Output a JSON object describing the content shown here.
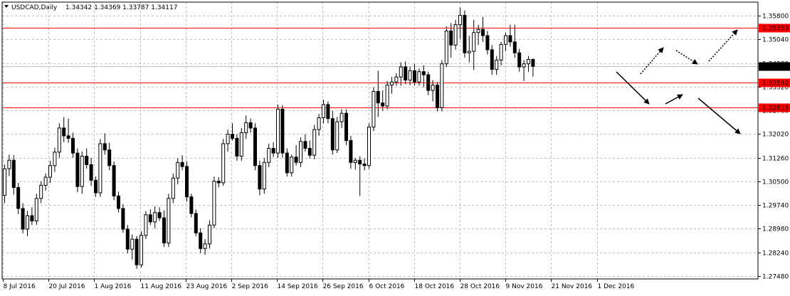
{
  "header": {
    "symbol_label": "USDCAD,Daily",
    "ohlc_label": "1.34342 1.34369 1.33787 1.34117"
  },
  "chart_data": {
    "type": "candlestick",
    "y_ticks": [
      "1.35800",
      "1.35040",
      "1.34280",
      "1.33520",
      "1.32760",
      "1.32020",
      "1.31260",
      "1.30500",
      "1.29740",
      "1.28980",
      "1.28240",
      "1.27480"
    ],
    "x_ticks": [
      "8 Jul 2016",
      "20 Jul 2016",
      "1 Aug 2016",
      "11 Aug 2016",
      "23 Aug 2016",
      "2 Sep 2016",
      "14 Sep 2016",
      "26 Sep 2016",
      "6 Oct 2016",
      "18 Oct 2016",
      "28 Oct 2016",
      "9 Nov 2016",
      "21 Nov 2016",
      "1 Dec 2016"
    ],
    "ylim": [
      1.2733,
      1.3617
    ],
    "grid": true,
    "current_price": "1.34117",
    "horizontal_levels": [
      {
        "value": 1.35353,
        "label": "1.35353",
        "color": "#ff0000"
      },
      {
        "value": 1.33592,
        "label": "1.33592",
        "color": "#ff0000"
      },
      {
        "value": 1.32815,
        "label": "1.32815",
        "color": "#ff0000"
      }
    ],
    "candles": [
      [
        1.3,
        1.3098,
        1.2975,
        1.3085
      ],
      [
        1.3085,
        1.313,
        1.3062,
        1.3112
      ],
      [
        1.3112,
        1.3128,
        1.3002,
        1.3025
      ],
      [
        1.3025,
        1.304,
        1.294,
        1.2958
      ],
      [
        1.2958,
        1.2975,
        1.2878,
        1.2892
      ],
      [
        1.2892,
        1.295,
        1.287,
        1.2935
      ],
      [
        1.2935,
        1.2962,
        1.2905,
        1.2918
      ],
      [
        1.2918,
        1.3005,
        1.2905,
        1.299
      ],
      [
        1.299,
        1.3045,
        1.2975,
        1.3032
      ],
      [
        1.3032,
        1.307,
        1.3015,
        1.3058
      ],
      [
        1.3058,
        1.311,
        1.304,
        1.3095
      ],
      [
        1.3095,
        1.3152,
        1.3075,
        1.3138
      ],
      [
        1.3138,
        1.323,
        1.312,
        1.3215
      ],
      [
        1.3215,
        1.325,
        1.317,
        1.319
      ],
      [
        1.319,
        1.3245,
        1.3168,
        1.3182
      ],
      [
        1.3182,
        1.32,
        1.312,
        1.3135
      ],
      [
        1.3135,
        1.315,
        1.301,
        1.3028
      ],
      [
        1.3028,
        1.314,
        1.3005,
        1.3125
      ],
      [
        1.3125,
        1.315,
        1.3085,
        1.3098
      ],
      [
        1.3098,
        1.312,
        1.303,
        1.3048
      ],
      [
        1.3048,
        1.306,
        1.2995,
        1.3008
      ],
      [
        1.3008,
        1.318,
        1.2995,
        1.3165
      ],
      [
        1.3165,
        1.3198,
        1.313,
        1.3145
      ],
      [
        1.3145,
        1.3168,
        1.308,
        1.3095
      ],
      [
        1.3095,
        1.3108,
        1.2985,
        1.2998
      ],
      [
        1.2998,
        1.3012,
        1.2945,
        1.2958
      ],
      [
        1.2958,
        1.2972,
        1.288,
        1.2892
      ],
      [
        1.2892,
        1.2905,
        1.2815,
        1.2828
      ],
      [
        1.2828,
        1.2875,
        1.2795,
        1.286
      ],
      [
        1.286,
        1.287,
        1.2765,
        1.2778
      ],
      [
        1.2778,
        1.2885,
        1.277,
        1.2872
      ],
      [
        1.2872,
        1.295,
        1.286,
        1.2938
      ],
      [
        1.2938,
        1.2955,
        1.2905,
        1.2915
      ],
      [
        1.2915,
        1.2965,
        1.2895,
        1.2945
      ],
      [
        1.2945,
        1.2962,
        1.2918,
        1.2928
      ],
      [
        1.2928,
        1.2952,
        1.2835,
        1.2848
      ],
      [
        1.2848,
        1.3005,
        1.2835,
        1.299
      ],
      [
        1.299,
        1.307,
        1.2975,
        1.3055
      ],
      [
        1.3055,
        1.3118,
        1.3035,
        1.3105
      ],
      [
        1.3105,
        1.3128,
        1.308,
        1.3092
      ],
      [
        1.3092,
        1.3108,
        1.298,
        1.2995
      ],
      [
        1.2995,
        1.3005,
        1.293,
        1.2942
      ],
      [
        1.2942,
        1.2955,
        1.287,
        1.288
      ],
      [
        1.288,
        1.2895,
        1.2815,
        1.283
      ],
      [
        1.283,
        1.286,
        1.281,
        1.2845
      ],
      [
        1.2845,
        1.292,
        1.283,
        1.2905
      ],
      [
        1.2905,
        1.306,
        1.2895,
        1.3045
      ],
      [
        1.3045,
        1.3058,
        1.3025,
        1.304
      ],
      [
        1.304,
        1.318,
        1.303,
        1.3165
      ],
      [
        1.3165,
        1.321,
        1.314,
        1.3195
      ],
      [
        1.3195,
        1.323,
        1.3175,
        1.3182
      ],
      [
        1.3182,
        1.3195,
        1.311,
        1.3125
      ],
      [
        1.3125,
        1.3215,
        1.311,
        1.32
      ],
      [
        1.32,
        1.3255,
        1.318,
        1.3232
      ],
      [
        1.3232,
        1.3245,
        1.32,
        1.3215
      ],
      [
        1.3215,
        1.323,
        1.308,
        1.3095
      ],
      [
        1.3095,
        1.311,
        1.3,
        1.302
      ],
      [
        1.302,
        1.312,
        1.3005,
        1.3105
      ],
      [
        1.3105,
        1.3165,
        1.309,
        1.315
      ],
      [
        1.315,
        1.317,
        1.3122,
        1.3135
      ],
      [
        1.3135,
        1.329,
        1.312,
        1.3275
      ],
      [
        1.3275,
        1.3288,
        1.312,
        1.3135
      ],
      [
        1.3135,
        1.315,
        1.306,
        1.3072
      ],
      [
        1.3072,
        1.313,
        1.306,
        1.3122
      ],
      [
        1.3122,
        1.316,
        1.3095,
        1.3105
      ],
      [
        1.3105,
        1.3185,
        1.309,
        1.3172
      ],
      [
        1.3172,
        1.3195,
        1.314,
        1.315
      ],
      [
        1.315,
        1.3175,
        1.3118,
        1.3128
      ],
      [
        1.3128,
        1.3225,
        1.3115,
        1.321
      ],
      [
        1.321,
        1.326,
        1.319,
        1.3248
      ],
      [
        1.3248,
        1.3305,
        1.323,
        1.329
      ],
      [
        1.329,
        1.33,
        1.323,
        1.3245
      ],
      [
        1.3245,
        1.327,
        1.313,
        1.3145
      ],
      [
        1.3145,
        1.325,
        1.3135,
        1.3235
      ],
      [
        1.3235,
        1.3275,
        1.3215,
        1.3262
      ],
      [
        1.3262,
        1.3275,
        1.316,
        1.3175
      ],
      [
        1.3175,
        1.319,
        1.3085,
        1.3105
      ],
      [
        1.3105,
        1.312,
        1.3082,
        1.3112
      ],
      [
        1.3112,
        1.3125,
        1.2998,
        1.31
      ],
      [
        1.31,
        1.3118,
        1.308,
        1.3095
      ],
      [
        1.3095,
        1.323,
        1.3085,
        1.3218
      ],
      [
        1.3218,
        1.3345,
        1.3205,
        1.3332
      ],
      [
        1.3332,
        1.3398,
        1.325,
        1.3295
      ],
      [
        1.3295,
        1.3335,
        1.327,
        1.3285
      ],
      [
        1.3285,
        1.3365,
        1.3275,
        1.3352
      ],
      [
        1.3352,
        1.3378,
        1.3325,
        1.3362
      ],
      [
        1.3362,
        1.339,
        1.335,
        1.3378
      ],
      [
        1.3378,
        1.3425,
        1.335,
        1.341
      ],
      [
        1.341,
        1.3428,
        1.3355,
        1.3368
      ],
      [
        1.3368,
        1.341,
        1.3352,
        1.3398
      ],
      [
        1.3398,
        1.342,
        1.335,
        1.3362
      ],
      [
        1.3362,
        1.3405,
        1.335,
        1.3395
      ],
      [
        1.3395,
        1.3415,
        1.3345,
        1.3385
      ],
      [
        1.3385,
        1.3395,
        1.332,
        1.3335
      ],
      [
        1.3335,
        1.3368,
        1.33,
        1.3352
      ],
      [
        1.3352,
        1.3362,
        1.3268,
        1.328
      ],
      [
        1.328,
        1.3432,
        1.3268,
        1.342
      ],
      [
        1.342,
        1.354,
        1.341,
        1.3525
      ],
      [
        1.3525,
        1.355,
        1.344,
        1.348
      ],
      [
        1.348,
        1.356,
        1.3465,
        1.3545
      ],
      [
        1.3545,
        1.36,
        1.35,
        1.3575
      ],
      [
        1.3575,
        1.359,
        1.344,
        1.3455
      ],
      [
        1.3455,
        1.351,
        1.3425,
        1.346
      ],
      [
        1.346,
        1.356,
        1.34,
        1.352
      ],
      [
        1.352,
        1.3545,
        1.348,
        1.353
      ],
      [
        1.353,
        1.357,
        1.349,
        1.351
      ],
      [
        1.351,
        1.3525,
        1.345,
        1.3465
      ],
      [
        1.3465,
        1.348,
        1.3385,
        1.3402
      ],
      [
        1.3402,
        1.3445,
        1.3385,
        1.3432
      ],
      [
        1.3432,
        1.349,
        1.3415,
        1.3482
      ],
      [
        1.3482,
        1.352,
        1.346,
        1.351
      ],
      [
        1.351,
        1.3545,
        1.3475,
        1.349
      ],
      [
        1.349,
        1.3545,
        1.344,
        1.3455
      ],
      [
        1.3455,
        1.3468,
        1.3395,
        1.341
      ],
      [
        1.341,
        1.3432,
        1.3365,
        1.342
      ],
      [
        1.342,
        1.3445,
        1.3395,
        1.3434
      ],
      [
        1.3434,
        1.3437,
        1.3379,
        1.3412
      ]
    ],
    "annotations": [
      {
        "kind": "arrow-solid",
        "start": [
          1.3402,
          1.356
        ],
        "end": [
          1.3368,
          1.3596
        ]
      },
      {
        "kind": "arrow-solid",
        "start": [
          1.3362,
          1.362
        ],
        "end": [
          1.3377,
          1.3655
        ]
      },
      {
        "kind": "arrow-solid",
        "start": [
          1.3373,
          1.368
        ],
        "end": [
          1.332,
          1.374
        ]
      },
      {
        "kind": "arrow-dotted",
        "start": [
          1.3399,
          1.3598
        ],
        "end": [
          1.3477,
          1.364
        ]
      },
      {
        "kind": "arrow-dotted",
        "start": [
          1.347,
          1.3645
        ],
        "end": [
          1.344,
          1.368
        ]
      },
      {
        "kind": "arrow-dotted",
        "start": [
          1.3447,
          1.37
        ],
        "end": [
          1.3536,
          1.375
        ]
      }
    ]
  }
}
